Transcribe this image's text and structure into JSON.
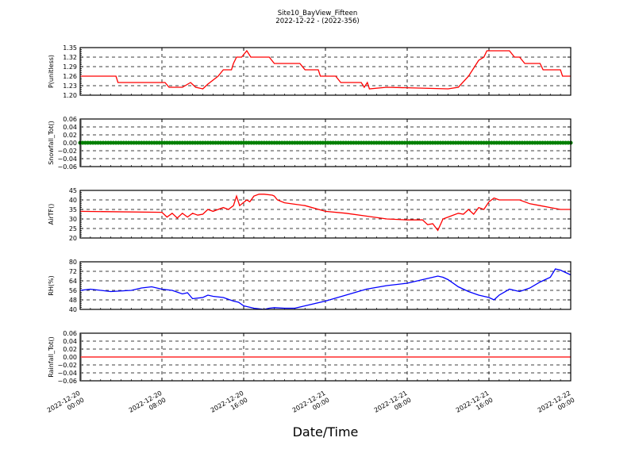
{
  "chart_data": {
    "type": "line",
    "title": "Site10_BayView_Fifteen",
    "subtitle": "2022-12-22 - (2022-356)",
    "xlabel": "Date/Time",
    "x_unit": "hours since 2022-12-20 00:00",
    "xlim": [
      0,
      48
    ],
    "x_ticks": [
      {
        "value": 0,
        "date": "2022-12-20",
        "time": "00:00"
      },
      {
        "value": 8,
        "date": "2022-12-20",
        "time": "08:00"
      },
      {
        "value": 16,
        "date": "2022-12-20",
        "time": "16:00"
      },
      {
        "value": 24,
        "date": "2022-12-21",
        "time": "00:00"
      },
      {
        "value": 32,
        "date": "2022-12-21",
        "time": "08:00"
      },
      {
        "value": 40,
        "date": "2022-12-21",
        "time": "16:00"
      },
      {
        "value": 48,
        "date": "2022-12-22",
        "time": "00:00"
      }
    ],
    "grid": true,
    "panels": [
      {
        "name": "pressure",
        "ylabel": "P(unitless)",
        "color": "#ff0000",
        "ylim": [
          1.2,
          1.35
        ],
        "yticks": [
          "1.20",
          "1.23",
          "1.26",
          "1.29",
          "1.32",
          "1.35"
        ],
        "x": [
          0,
          3.5,
          3.7,
          8.3,
          8.7,
          10,
          10.8,
          11.3,
          12,
          12.5,
          13.5,
          14,
          14.8,
          15,
          15.3,
          15.8,
          16.3,
          16.7,
          18,
          18.5,
          19,
          21.5,
          22,
          23.3,
          23.5,
          25,
          25.5,
          27.5,
          27.8,
          28.1,
          28.3,
          30,
          36,
          37,
          38,
          39,
          39.5,
          39.8,
          42,
          42.5,
          43,
          43.5,
          45,
          45.3,
          47,
          47.2,
          48
        ],
        "y": [
          1.26,
          1.26,
          1.24,
          1.24,
          1.225,
          1.225,
          1.24,
          1.225,
          1.22,
          1.235,
          1.26,
          1.28,
          1.28,
          1.3,
          1.32,
          1.32,
          1.34,
          1.32,
          1.32,
          1.32,
          1.3,
          1.3,
          1.28,
          1.28,
          1.26,
          1.26,
          1.24,
          1.24,
          1.225,
          1.24,
          1.22,
          1.225,
          1.22,
          1.225,
          1.26,
          1.31,
          1.32,
          1.34,
          1.34,
          1.32,
          1.32,
          1.3,
          1.3,
          1.28,
          1.28,
          1.26,
          1.26
        ]
      },
      {
        "name": "snowfall",
        "ylabel": "Snowfall_Tot()",
        "color": "#008000",
        "markers": true,
        "ylim": [
          -0.06,
          0.06
        ],
        "yticks": [
          "−0.06",
          "−0.04",
          "−0.02",
          "0.00",
          "0.02",
          "0.04",
          "0.06"
        ],
        "x": [
          0,
          48
        ],
        "y": [
          0,
          0
        ]
      },
      {
        "name": "air-temperature",
        "ylabel": "AirTF()",
        "color": "#ff0000",
        "ylim": [
          20,
          45
        ],
        "yticks": [
          "20",
          "25",
          "30",
          "35",
          "40",
          "45"
        ],
        "x": [
          0,
          8,
          8.5,
          9,
          9.5,
          10,
          10.5,
          11,
          11.5,
          12,
          12.5,
          13,
          13.5,
          14,
          14.5,
          15,
          15.3,
          15.6,
          16.3,
          16.6,
          17,
          17.5,
          18,
          18.8,
          19,
          19.3,
          20,
          22,
          24,
          26,
          28,
          30,
          32,
          33.5,
          34,
          34.5,
          35,
          35.5,
          36,
          37,
          37.5,
          38,
          38.5,
          39,
          39.5,
          40,
          40.5,
          41,
          42,
          43,
          44,
          45,
          46,
          47,
          48
        ],
        "y": [
          34,
          33.5,
          31,
          33,
          30.5,
          33,
          31,
          33,
          32,
          32.5,
          35,
          34,
          35,
          36,
          35,
          37,
          42,
          37,
          40,
          39,
          42,
          43,
          43,
          42.5,
          42,
          40,
          38.5,
          37,
          34,
          33,
          31.5,
          30,
          29.5,
          29.5,
          27,
          27.5,
          24,
          30,
          31,
          33,
          32.5,
          35,
          32.5,
          36,
          35,
          39,
          41,
          40,
          40,
          40,
          38,
          37,
          36,
          35,
          35
        ]
      },
      {
        "name": "relative-humidity",
        "ylabel": "RH(%)",
        "color": "#0000ff",
        "ylim": [
          40,
          80
        ],
        "yticks": [
          "40",
          "48",
          "56",
          "64",
          "72",
          "80"
        ],
        "x": [
          0,
          1,
          3,
          5,
          6,
          7,
          8,
          9,
          10,
          10.5,
          11,
          12,
          12.5,
          13,
          14,
          15,
          15.5,
          16,
          17,
          18,
          18.5,
          19,
          20,
          21,
          22,
          24,
          26,
          28,
          30,
          32,
          33,
          34,
          35,
          35.5,
          36,
          37,
          38,
          39,
          40,
          40.5,
          41,
          42,
          43,
          44,
          45,
          45.5,
          46,
          46.5,
          47,
          48
        ],
        "y": [
          56,
          57,
          55,
          56,
          58,
          59,
          57,
          56,
          53,
          54,
          49,
          50,
          52,
          51,
          50,
          47,
          46,
          43,
          41,
          40,
          41,
          41.5,
          41,
          41,
          43,
          47,
          52,
          57,
          60,
          62,
          64,
          66,
          68,
          67,
          65,
          59,
          55,
          52,
          50,
          48,
          52,
          57,
          55,
          58,
          63,
          65,
          67,
          74,
          73,
          69
        ]
      },
      {
        "name": "rainfall",
        "ylabel": "Rainfall_Tot()",
        "color": "#ff0000",
        "ylim": [
          -0.06,
          0.06
        ],
        "yticks": [
          "−0.06",
          "−0.04",
          "−0.02",
          "0.00",
          "0.02",
          "0.04",
          "0.06"
        ],
        "x": [
          0,
          48
        ],
        "y": [
          0,
          0
        ]
      }
    ]
  }
}
